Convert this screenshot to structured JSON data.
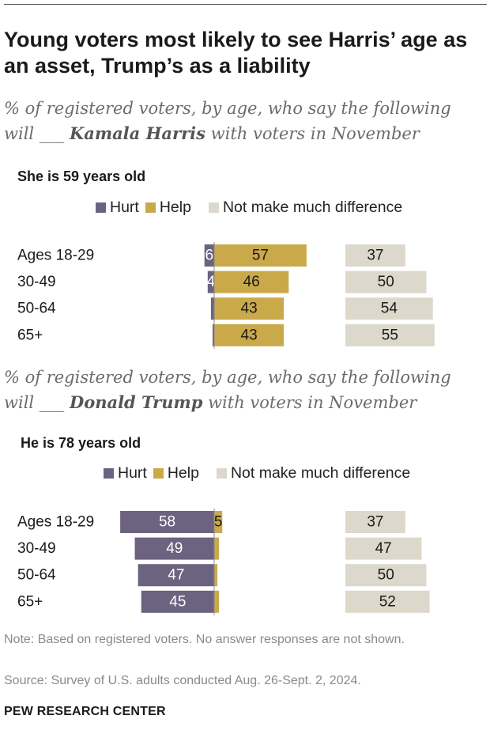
{
  "title": "Young voters most likely to see Harris’ age as an asset, Trump’s as a liability",
  "colors": {
    "hurt": "#6b6380",
    "help": "#c9a94a",
    "no_diff": "#dcd8cb",
    "axis": "#8a8a8a"
  },
  "chart_data": [
    {
      "type": "bar",
      "subtitle_pre": "% of registered voters, by age, who say the following",
      "subtitle_mid": "will ___ ",
      "subtitle_name": "Kamala Harris",
      "subtitle_post": " with voters in November",
      "title": "She is 59 years old",
      "legend": {
        "hurt": "Hurt",
        "help": "Help",
        "no_diff": "Not make much difference"
      },
      "categories": [
        "Ages 18-29",
        "30-49",
        "50-64",
        "65+"
      ],
      "series": [
        {
          "name": "Hurt",
          "values": [
            6,
            4,
            2,
            1
          ],
          "labels": [
            "6",
            "4",
            "",
            ""
          ]
        },
        {
          "name": "Help",
          "values": [
            57,
            46,
            43,
            43
          ],
          "labels": [
            "57",
            "46",
            "43",
            "43"
          ]
        },
        {
          "name": "Not make much difference",
          "values": [
            37,
            50,
            54,
            55
          ],
          "labels": [
            "37",
            "50",
            "54",
            "55"
          ]
        }
      ]
    },
    {
      "type": "bar",
      "subtitle_pre": "% of registered voters, by age, who say the following",
      "subtitle_mid": "will ___ ",
      "subtitle_name": "Donald Trump",
      "subtitle_post": " with voters in November",
      "title": "He is 78 years old",
      "legend": {
        "hurt": "Hurt",
        "help": "Help",
        "no_diff": "Not make much difference"
      },
      "categories": [
        "Ages 18-29",
        "30-49",
        "50-64",
        "65+"
      ],
      "series": [
        {
          "name": "Hurt",
          "values": [
            58,
            49,
            47,
            45
          ],
          "labels": [
            "58",
            "49",
            "47",
            "45"
          ]
        },
        {
          "name": "Help",
          "values": [
            5,
            3,
            2,
            3
          ],
          "labels": [
            "5",
            "",
            "",
            ""
          ]
        },
        {
          "name": "Not make much difference",
          "values": [
            37,
            47,
            50,
            52
          ],
          "labels": [
            "37",
            "47",
            "50",
            "52"
          ]
        }
      ]
    }
  ],
  "note": "Note: Based on registered voters. No answer responses are not shown.",
  "source": "Source: Survey of U.S. adults conducted Aug. 26-Sept. 2, 2024.",
  "brand": "PEW RESEARCH CENTER"
}
